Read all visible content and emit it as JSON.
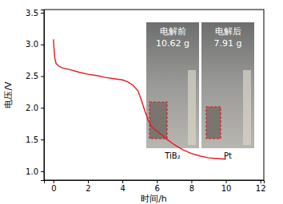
{
  "chart_data": {
    "type": "line",
    "x_label": "时间/h",
    "y_label": "电压/V",
    "x": [
      0,
      0.03,
      0.08,
      0.15,
      0.3,
      0.5,
      1,
      1.5,
      2,
      2.5,
      3,
      3.5,
      4,
      4.3,
      4.6,
      4.9,
      5.1,
      5.3,
      5.5,
      5.7,
      6,
      6.3,
      6.6,
      7,
      7.5,
      8,
      8.5,
      9,
      9.5,
      10
    ],
    "values": [
      3.08,
      2.95,
      2.78,
      2.7,
      2.66,
      2.63,
      2.6,
      2.56,
      2.53,
      2.51,
      2.48,
      2.46,
      2.44,
      2.41,
      2.36,
      2.27,
      2.12,
      1.95,
      1.8,
      1.7,
      1.63,
      1.57,
      1.5,
      1.42,
      1.34,
      1.28,
      1.24,
      1.21,
      1.2,
      1.19
    ],
    "color": "#e8191d",
    "xlim": [
      -0.55,
      12.2
    ],
    "ylim": [
      0.86,
      3.55
    ],
    "xticks": [
      0,
      2,
      4,
      6,
      8,
      10,
      12
    ],
    "yticks": [
      {
        "value": 1,
        "label": "1.0"
      },
      {
        "value": 1.5,
        "label": "1.5"
      },
      {
        "value": 2,
        "label": "2.0"
      },
      {
        "value": 2.5,
        "label": "2.5"
      },
      {
        "value": 3,
        "label": "3.0"
      },
      {
        "value": 3.5,
        "label": "3.5"
      }
    ],
    "annotations": [
      "电解前",
      "10.62 g",
      "电解后",
      "7.91 g",
      "TiB₂",
      "Pt"
    ]
  }
}
